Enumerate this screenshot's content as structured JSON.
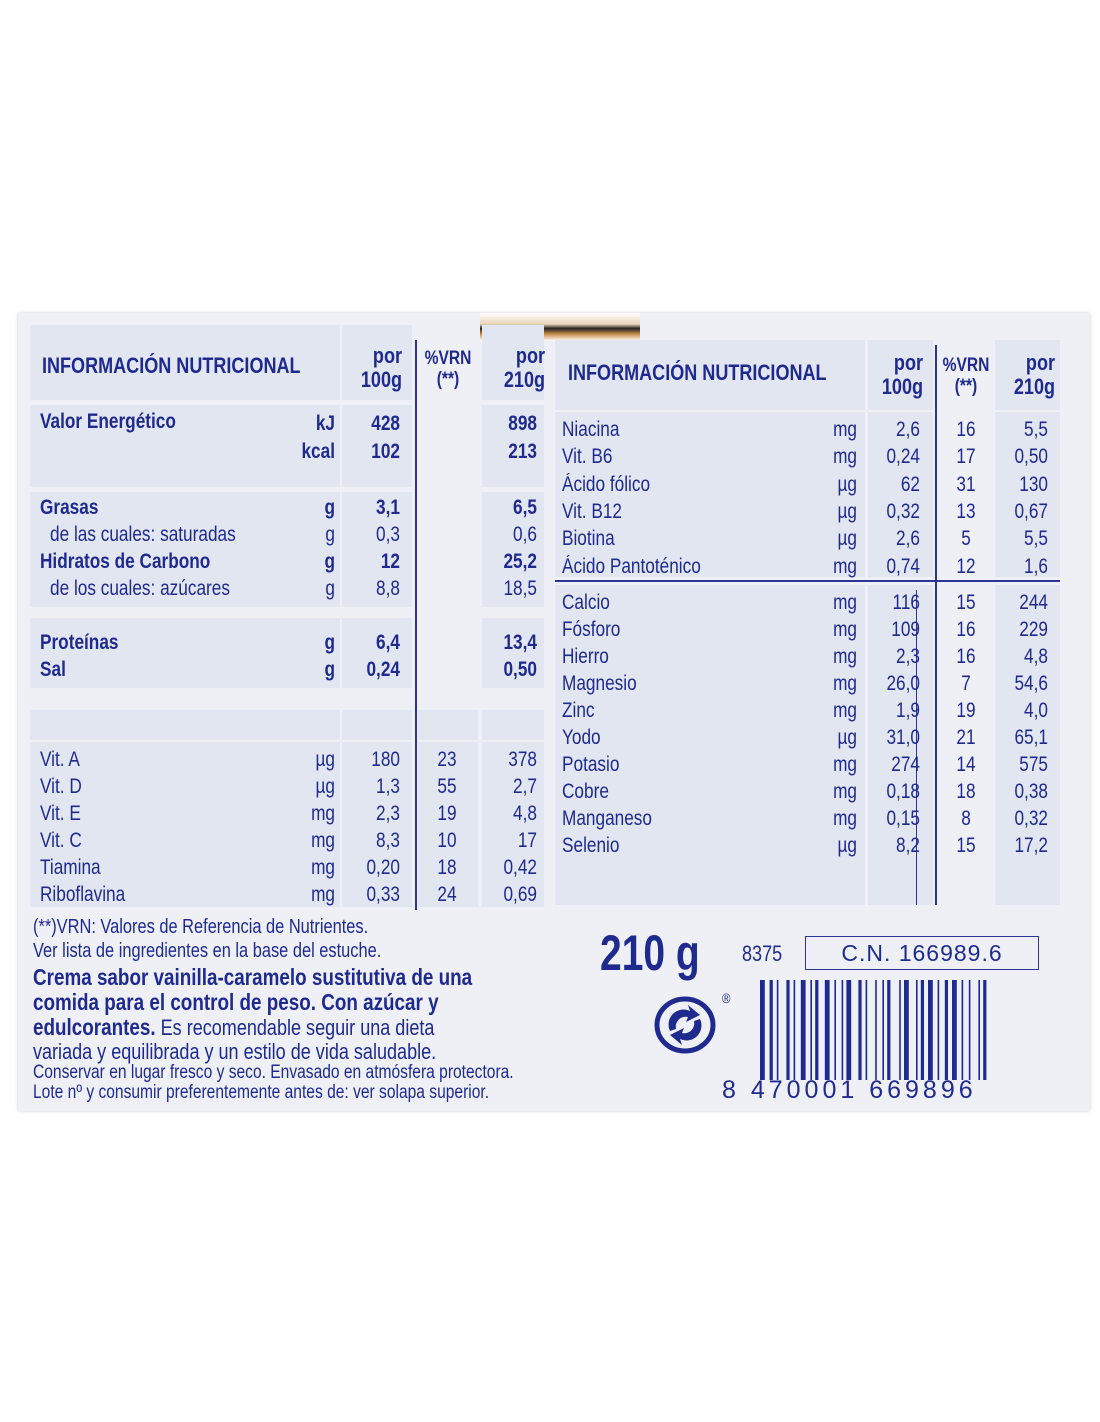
{
  "left": {
    "header": {
      "title": "INFORMACIÓN NUTRICIONAL",
      "por100_l1": "por",
      "por100_l2": "100g",
      "vrn_l1": "%VRN",
      "vrn_l2": "(**)",
      "por210_l1": "por",
      "por210_l2": "210g"
    },
    "energy": {
      "label": "Valor Energético",
      "rows": [
        {
          "unit": "kJ",
          "per100": "428",
          "per210": "898"
        },
        {
          "unit": "kcal",
          "per100": "102",
          "per210": "213"
        }
      ]
    },
    "macros": [
      {
        "label": "Grasas",
        "unit": "g",
        "per100": "3,1",
        "per210": "6,5",
        "bold": true,
        "indent": false
      },
      {
        "label": "de las cuales: saturadas",
        "unit": "g",
        "per100": "0,3",
        "per210": "0,6",
        "bold": false,
        "indent": true
      },
      {
        "label": "Hidratos de Carbono",
        "unit": "g",
        "per100": "12",
        "per210": "25,2",
        "bold": true,
        "indent": false
      },
      {
        "label": "de los cuales: azúcares",
        "unit": "g",
        "per100": "8,8",
        "per210": "18,5",
        "bold": false,
        "indent": true
      },
      {
        "label": "Proteínas",
        "unit": "g",
        "per100": "6,4",
        "per210": "13,4",
        "bold": true,
        "indent": false
      },
      {
        "label": "Sal",
        "unit": "g",
        "per100": "0,24",
        "per210": "0,50",
        "bold": true,
        "indent": false
      }
    ],
    "vitamins": [
      {
        "label": "Vit. A",
        "unit": "µg",
        "per100": "180",
        "vrn": "23",
        "per210": "378"
      },
      {
        "label": "Vit. D",
        "unit": "µg",
        "per100": "1,3",
        "vrn": "55",
        "per210": "2,7"
      },
      {
        "label": "Vit. E",
        "unit": "mg",
        "per100": "2,3",
        "vrn": "19",
        "per210": "4,8"
      },
      {
        "label": "Vit. C",
        "unit": "mg",
        "per100": "8,3",
        "vrn": "10",
        "per210": "17"
      },
      {
        "label": "Tiamina",
        "unit": "mg",
        "per100": "0,20",
        "vrn": "18",
        "per210": "0,42"
      },
      {
        "label": "Riboflavina",
        "unit": "mg",
        "per100": "0,33",
        "vrn": "24",
        "per210": "0,69"
      }
    ]
  },
  "right": {
    "header": {
      "title": "INFORMACIÓN NUTRICIONAL",
      "por100_l1": "por",
      "por100_l2": "100g",
      "vrn_l1": "%VRN",
      "vrn_l2": "(**)",
      "por210_l1": "por",
      "por210_l2": "210g"
    },
    "vitamins": [
      {
        "label": "Niacina",
        "unit": "mg",
        "per100": "2,6",
        "vrn": "16",
        "per210": "5,5"
      },
      {
        "label": "Vit. B6",
        "unit": "mg",
        "per100": "0,24",
        "vrn": "17",
        "per210": "0,50"
      },
      {
        "label": "Ácido fólico",
        "unit": "µg",
        "per100": "62",
        "vrn": "31",
        "per210": "130"
      },
      {
        "label": "Vit. B12",
        "unit": "µg",
        "per100": "0,32",
        "vrn": "13",
        "per210": "0,67"
      },
      {
        "label": "Biotina",
        "unit": "µg",
        "per100": "2,6",
        "vrn": "5",
        "per210": "5,5"
      },
      {
        "label": "Ácido Pantoténico",
        "unit": "mg",
        "per100": "0,74",
        "vrn": "12",
        "per210": "1,6"
      }
    ],
    "minerals": [
      {
        "label": "Calcio",
        "unit": "mg",
        "per100": "116",
        "vrn": "15",
        "per210": "244"
      },
      {
        "label": "Fósforo",
        "unit": "mg",
        "per100": "109",
        "vrn": "16",
        "per210": "229"
      },
      {
        "label": "Hierro",
        "unit": "mg",
        "per100": "2,3",
        "vrn": "16",
        "per210": "4,8"
      },
      {
        "label": "Magnesio",
        "unit": "mg",
        "per100": "26,0",
        "vrn": "7",
        "per210": "54,6"
      },
      {
        "label": "Zinc",
        "unit": "mg",
        "per100": "1,9",
        "vrn": "19",
        "per210": "4,0"
      },
      {
        "label": "Yodo",
        "unit": "µg",
        "per100": "31,0",
        "vrn": "21",
        "per210": "65,1"
      },
      {
        "label": "Potasio",
        "unit": "mg",
        "per100": "274",
        "vrn": "14",
        "per210": "575"
      },
      {
        "label": "Cobre",
        "unit": "mg",
        "per100": "0,18",
        "vrn": "18",
        "per210": "0,38"
      },
      {
        "label": "Manganeso",
        "unit": "mg",
        "per100": "0,15",
        "vrn": "8",
        "per210": "0,32"
      },
      {
        "label": "Selenio",
        "unit": "µg",
        "per100": "8,2",
        "vrn": "15",
        "per210": "17,2"
      }
    ]
  },
  "footer": {
    "vrn_note": "(**)VRN: Valores de Referencia de Nutrientes.",
    "ingredients_note": "Ver lista de ingredientes en la base del estuche.",
    "desc_bold_1": "Crema sabor vainilla-caramelo sustitutiva de una",
    "desc_bold_2": "comida para el control de peso. Con azúcar y",
    "desc_bold_3": "edulcorantes.",
    "desc_3_rest": " Es recomendable seguir una dieta",
    "desc_4": "variada y equilibrada y un estilo de vida saludable.",
    "storage": "Conservar en lugar fresco y seco. Envasado en atmósfera protectora.",
    "lot": "Lote nº y consumir preferentemente antes de: ver solapa superior.",
    "weight": "210 g",
    "code": "8375",
    "cn": "C.N. 166989.6",
    "registered": "®",
    "barcode_digits": "8  470001  669896",
    "recycle_icon": "green-dot-icon"
  },
  "colors": {
    "ink": "#1f2a8f",
    "panel": "#eef0f6",
    "cell": "#e2e6f0"
  }
}
